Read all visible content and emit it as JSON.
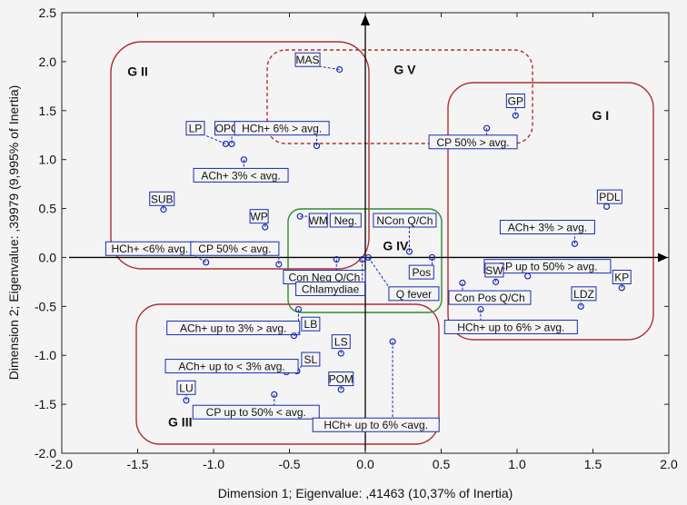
{
  "chart_data": {
    "type": "scatter",
    "title": "",
    "xlabel": "Dimension 1; Eigenvalue: ,41463 (10,37% of Inertia)",
    "ylabel": "Dimension 2; Eigenvalue: ,39979 (9,995% of Inertia)",
    "xlim": [
      -2.0,
      2.0
    ],
    "ylim": [
      -2.0,
      2.5
    ],
    "xticks": [
      -2.0,
      -1.5,
      -1.0,
      -0.5,
      0.0,
      0.5,
      1.0,
      1.5,
      2.0
    ],
    "yticks": [
      -2.0,
      -1.5,
      -1.0,
      -0.5,
      0.0,
      0.5,
      1.0,
      1.5,
      2.0,
      2.5
    ],
    "xtick_labels": [
      "-2.0",
      "-1.5",
      "-1.0",
      "-0.5",
      "0.0",
      "0.5",
      "1.0",
      "1.5",
      "2.0"
    ],
    "ytick_labels": [
      "-2.0",
      "-1.5",
      "-1.0",
      "-0.5",
      "0.0",
      "0.5",
      "1.0",
      "1.5",
      "2.0",
      "2.5"
    ],
    "grid": false,
    "points": [
      {
        "label": "MAS",
        "x": -0.17,
        "y": 1.92,
        "lx": -0.38,
        "ly": 2.02
      },
      {
        "label": "GP",
        "x": 0.99,
        "y": 1.45,
        "lx": 0.99,
        "ly": 1.6
      },
      {
        "label": "CP 50% > avg.",
        "x": 0.8,
        "y": 1.32,
        "lx": 0.71,
        "ly": 1.18
      },
      {
        "label": "LP",
        "x": -0.92,
        "y": 1.16,
        "lx": -1.12,
        "ly": 1.32
      },
      {
        "label": "OPO",
        "x": -0.88,
        "y": 1.16,
        "lx": -0.91,
        "ly": 1.32
      },
      {
        "label": "HCh+ 6% > avg.",
        "x": -0.32,
        "y": 1.14,
        "lx": -0.55,
        "ly": 1.32
      },
      {
        "label": "ACh+ 3% < avg.",
        "x": -0.8,
        "y": 1.0,
        "lx": -0.82,
        "ly": 0.84
      },
      {
        "label": "SUB",
        "x": -1.33,
        "y": 0.49,
        "lx": -1.34,
        "ly": 0.6
      },
      {
        "label": "WP",
        "x": -0.66,
        "y": 0.31,
        "lx": -0.7,
        "ly": 0.42
      },
      {
        "label": "WM",
        "x": -0.43,
        "y": 0.42,
        "lx": -0.31,
        "ly": 0.38
      },
      {
        "label": "Neg.",
        "x": -0.15,
        "y": 0.38,
        "lx": -0.13,
        "ly": 0.38
      },
      {
        "label": "NCon Q/Ch",
        "x": 0.29,
        "y": 0.06,
        "lx": 0.26,
        "ly": 0.38
      },
      {
        "label": "PDL",
        "x": 1.59,
        "y": 0.52,
        "lx": 1.61,
        "ly": 0.62
      },
      {
        "label": "ACh+ 3% > avg.",
        "x": 1.38,
        "y": 0.14,
        "lx": 1.2,
        "ly": 0.31
      },
      {
        "label": "HCh+ <6% avg.",
        "x": -1.05,
        "y": -0.05,
        "lx": -1.42,
        "ly": 0.09
      },
      {
        "label": "CP 50% < avg.",
        "x": -0.57,
        "y": -0.07,
        "lx": -0.86,
        "ly": 0.09
      },
      {
        "label": "Pos",
        "x": 0.44,
        "y": 0.0,
        "lx": 0.37,
        "ly": -0.15
      },
      {
        "label": "Con Neg Q/Ch",
        "x": -0.19,
        "y": -0.02,
        "lx": -0.27,
        "ly": -0.2
      },
      {
        "label": "Chlamydiae",
        "x": -0.02,
        "y": -0.02,
        "lx": -0.23,
        "ly": -0.32
      },
      {
        "label": "Q fever",
        "x": 0.02,
        "y": 0.0,
        "lx": 0.32,
        "ly": -0.37
      },
      {
        "label": "CP up to 50% > avg.",
        "x": 1.07,
        "y": -0.19,
        "lx": 1.2,
        "ly": -0.09
      },
      {
        "label": "SW",
        "x": 0.86,
        "y": -0.25,
        "lx": 0.85,
        "ly": -0.13
      },
      {
        "label": "KP",
        "x": 1.69,
        "y": -0.31,
        "lx": 1.69,
        "ly": -0.2
      },
      {
        "label": "Con Pos Q/Ch",
        "x": 0.64,
        "y": -0.26,
        "lx": 0.82,
        "ly": -0.41
      },
      {
        "label": "LDZ",
        "x": 1.42,
        "y": -0.5,
        "lx": 1.44,
        "ly": -0.37
      },
      {
        "label": "HCh+ up to 6% > avg.",
        "x": 0.76,
        "y": -0.53,
        "lx": 0.96,
        "ly": -0.71
      },
      {
        "label": "ACh+ up to 3% > avg.",
        "x": -0.44,
        "y": -0.53,
        "lx": -0.87,
        "ly": -0.72
      },
      {
        "label": "LB",
        "x": -0.47,
        "y": -0.8,
        "lx": -0.36,
        "ly": -0.68
      },
      {
        "label": "LS",
        "x": -0.16,
        "y": -0.98,
        "lx": -0.16,
        "ly": -0.86
      },
      {
        "label": "SL",
        "x": -0.45,
        "y": -1.16,
        "lx": -0.36,
        "ly": -1.04
      },
      {
        "label": "ACh+ up to < 3% avg.",
        "x": -0.52,
        "y": -1.17,
        "lx": -0.88,
        "ly": -1.11
      },
      {
        "label": "POM",
        "x": -0.16,
        "y": -1.35,
        "lx": -0.16,
        "ly": -1.24
      },
      {
        "label": "LU",
        "x": -1.18,
        "y": -1.46,
        "lx": -1.18,
        "ly": -1.33
      },
      {
        "label": "CP up to 50% < avg.",
        "x": -0.6,
        "y": -1.4,
        "lx": -0.72,
        "ly": -1.58
      },
      {
        "label": "HCh+ up to 6% <avg.",
        "x": 0.18,
        "y": -0.86,
        "lx": 0.07,
        "ly": -1.71
      }
    ],
    "groups": [
      {
        "name": "G I",
        "color": "#b03030",
        "dashed": false,
        "lx": 1.55,
        "ly": 1.45
      },
      {
        "name": "G II",
        "color": "#b03030",
        "dashed": false,
        "lx": -1.5,
        "ly": 1.9
      },
      {
        "name": "G III",
        "color": "#b03030",
        "dashed": false,
        "lx": -1.22,
        "ly": -1.68
      },
      {
        "name": "G IV",
        "color": "#2e8b2e",
        "dashed": false,
        "lx": 0.2,
        "ly": 0.12
      },
      {
        "name": "G V",
        "color": "#b03030",
        "dashed": true,
        "lx": 0.26,
        "ly": 1.92
      }
    ]
  }
}
